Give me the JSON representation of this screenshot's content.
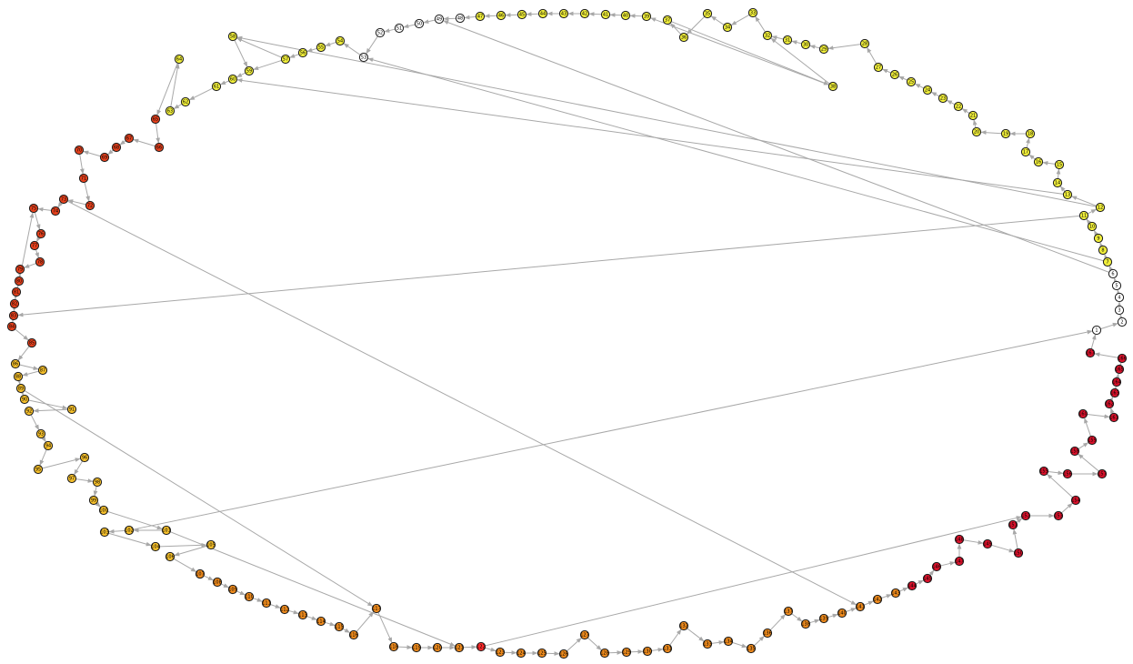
{
  "graph": {
    "colors": {
      "edge": "#a8a8a8",
      "white": "#ffffff",
      "yellow": "#f0ee3a",
      "amber": "#f5bf2a",
      "orange": "#ee8a1c",
      "redorange": "#e5401c",
      "red": "#d8112a",
      "highlight": "#ff2a2a"
    },
    "node_labels": [
      "1",
      "2",
      "3",
      "4",
      "5",
      "6",
      "7",
      "8",
      "9",
      "10",
      "11",
      "12",
      "13",
      "14",
      "15",
      "16",
      "17",
      "18",
      "19",
      "20",
      "21",
      "22",
      "23",
      "24",
      "25",
      "26",
      "27",
      "28",
      "29",
      "30",
      "31",
      "32",
      "33",
      "34",
      "35",
      "36",
      "37",
      "38",
      "39",
      "40",
      "41",
      "42",
      "43",
      "44",
      "45",
      "46",
      "47",
      "48",
      "49",
      "50",
      "51",
      "52",
      "53",
      "54",
      "55",
      "56",
      "57",
      "58",
      "59",
      "60",
      "61",
      "62",
      "63",
      "64",
      "65",
      "66",
      "67",
      "68",
      "69",
      "70",
      "71",
      "72",
      "73",
      "74",
      "75",
      "76",
      "77",
      "78",
      "79",
      "80",
      "81",
      "82",
      "83",
      "84",
      "85",
      "86",
      "87",
      "88",
      "89",
      "90",
      "91",
      "92",
      "93",
      "94",
      "95",
      "96",
      "97",
      "98",
      "99",
      "100",
      "101",
      "102",
      "103",
      "104",
      "105",
      "106",
      "107",
      "108",
      "109",
      "110",
      "111",
      "112",
      "113",
      "114",
      "115",
      "116",
      "117",
      "118",
      "119",
      "120",
      "121",
      "122",
      "123",
      "124",
      "125",
      "126",
      "127",
      "128",
      "129",
      "130",
      "131",
      "132",
      "133",
      "134",
      "135",
      "136",
      "137",
      "138",
      "139",
      "140",
      "141",
      "142",
      "143",
      "144",
      "145",
      "146",
      "147",
      "148",
      "149",
      "150",
      "151",
      "152",
      "153",
      "154",
      "155",
      "156",
      "157",
      "158",
      "159",
      "160",
      "161",
      "162",
      "163",
      "164",
      "165",
      "166",
      "167",
      "168",
      "169",
      "170",
      "171",
      "172",
      "173",
      "174",
      "175",
      "176",
      "177",
      "178",
      "179",
      "180",
      "181",
      "182",
      "183",
      "184",
      "185",
      "186",
      "187",
      "188",
      "189",
      "190",
      "191",
      "192",
      "193",
      "194",
      "195",
      "196",
      "197",
      "198",
      "199",
      "200"
    ]
  }
}
